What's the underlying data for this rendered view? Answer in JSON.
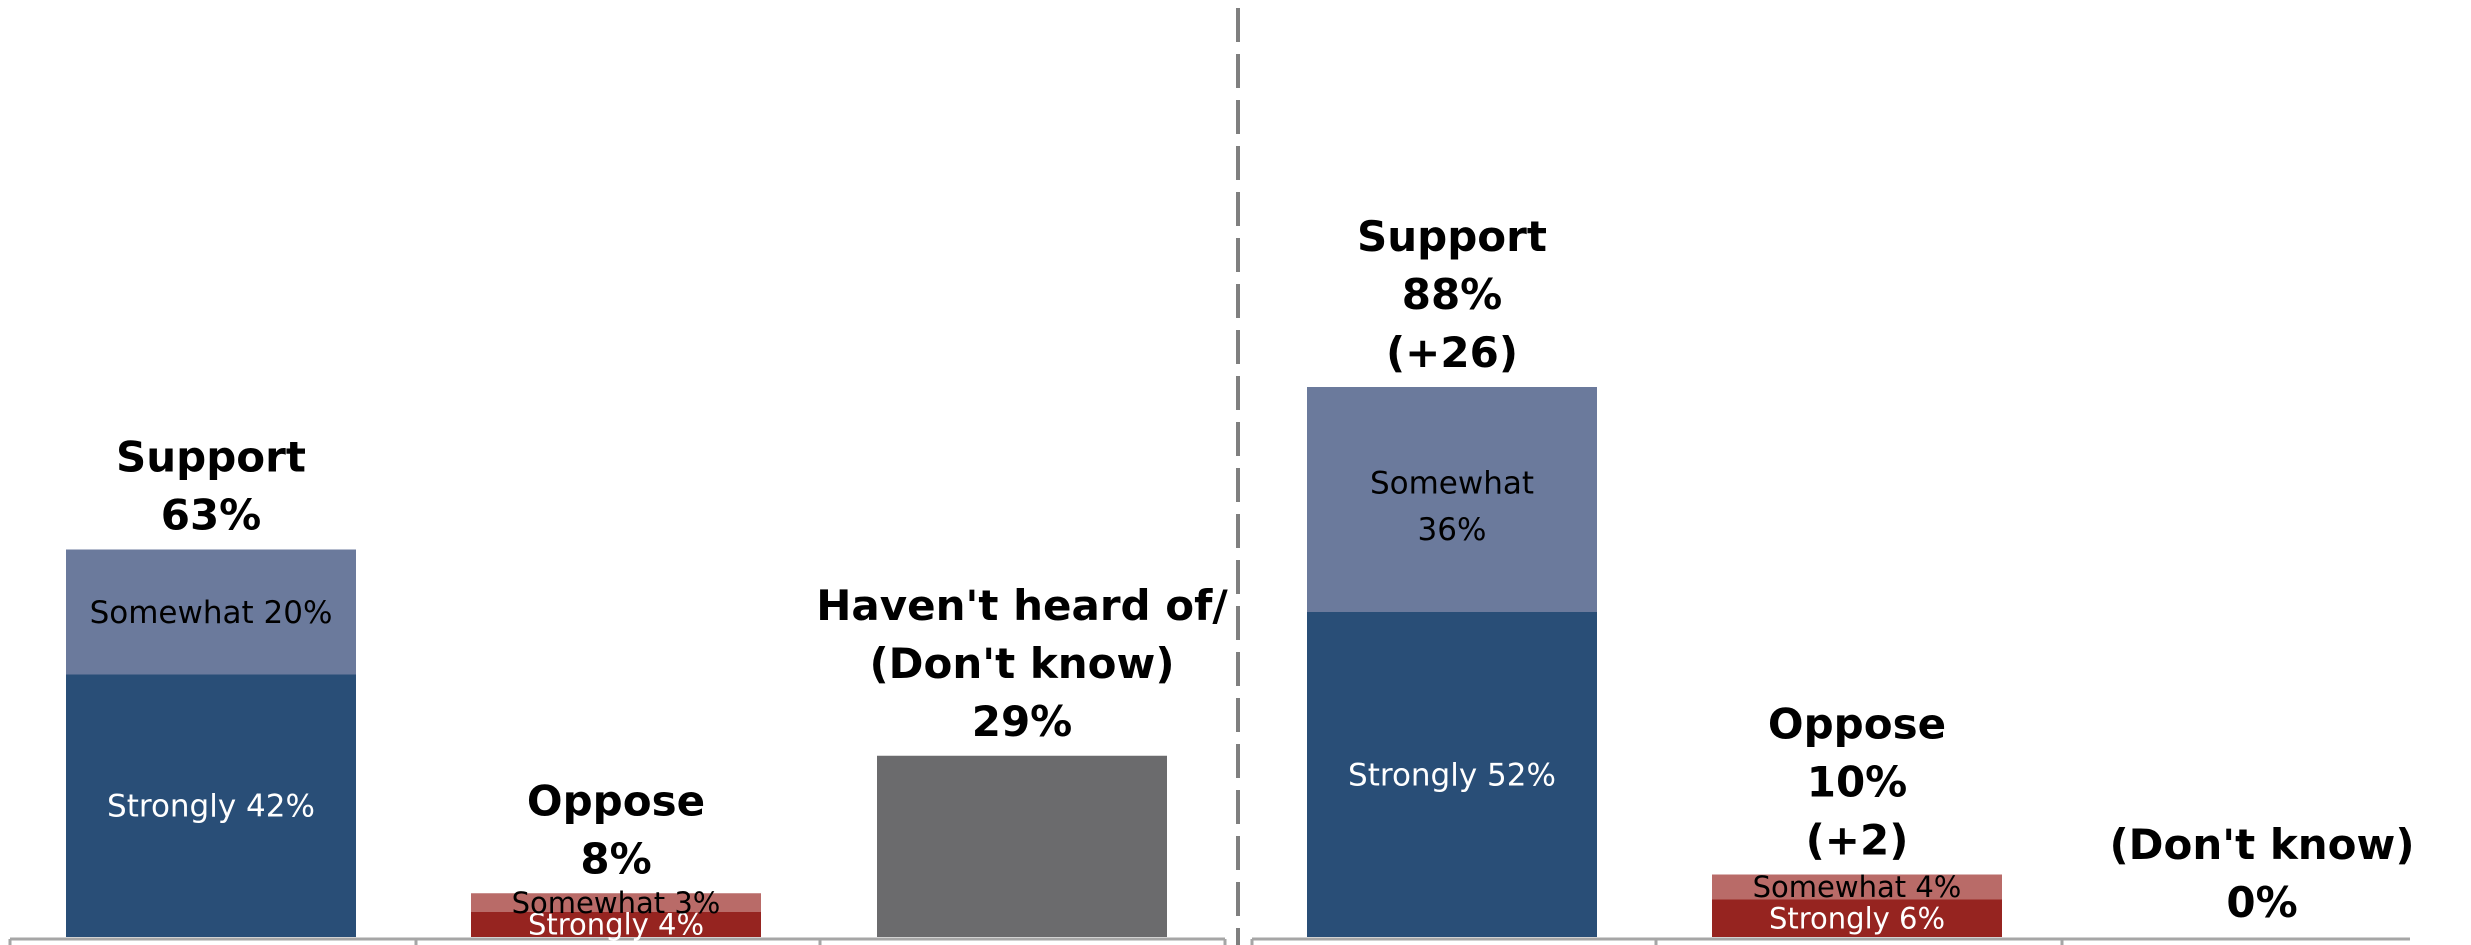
{
  "colors": {
    "support_strongly": "#294e77",
    "support_somewhat": "#6b7a9c",
    "oppose_strongly": "#962420",
    "oppose_somewhat": "#b96b68",
    "dont_know": "#6b6b6d",
    "divider": "#7f7f7f",
    "baseline": "#a6a6a6"
  },
  "chart_data": [
    {
      "type": "bar",
      "stacked": true,
      "categories": [
        "Support",
        "Oppose",
        "Haven't heard of/ (Don't know)"
      ],
      "series": [
        {
          "values": [
            42,
            4,
            29
          ]
        },
        {
          "values": [
            20,
            3,
            0
          ]
        }
      ],
      "headers": [
        [
          "Support",
          "63%"
        ],
        [
          "Oppose",
          "8%"
        ],
        [
          "Haven't heard of/",
          "(Don't know)",
          "29%"
        ]
      ],
      "segment_labels": [
        [
          "Strongly 42%",
          "Somewhat 20%"
        ],
        [
          "Strongly 4%",
          "Somewhat 3%"
        ],
        []
      ],
      "ylim": [
        0,
        100
      ],
      "grid": false,
      "legend": "none"
    },
    {
      "type": "bar",
      "stacked": true,
      "categories": [
        "Support",
        "Oppose",
        "(Don't know)"
      ],
      "series": [
        {
          "values": [
            52,
            6,
            0
          ]
        },
        {
          "values": [
            36,
            4,
            0
          ]
        }
      ],
      "headers": [
        [
          "Support",
          "88%",
          "(+26)"
        ],
        [
          "Oppose",
          "10%",
          "(+2)"
        ],
        [
          "(Don't know)",
          "0%"
        ]
      ],
      "segment_labels": [
        [
          "Strongly 52%",
          "Somewhat 36%"
        ],
        [
          "Strongly 6%",
          "Somewhat 4%"
        ],
        []
      ],
      "ylim": [
        0,
        100
      ],
      "grid": false,
      "legend": "none"
    }
  ]
}
